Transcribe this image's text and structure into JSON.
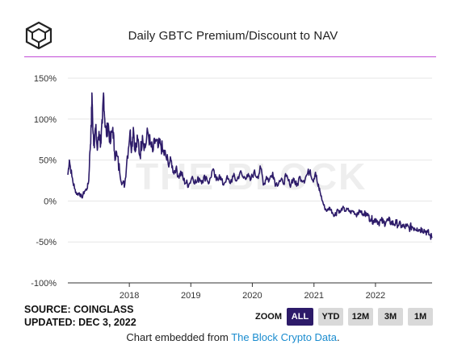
{
  "header": {
    "title": "Daily GBTC Premium/Discount to NAV",
    "logo_icon": "cube-logo-icon",
    "accent_color": "#c14bd6"
  },
  "watermark": "THE BLOCK",
  "chart_data": {
    "type": "line",
    "title": "Daily GBTC Premium/Discount to NAV",
    "xlabel": "",
    "ylabel": "",
    "x_ticks": [
      "2018",
      "2019",
      "2020",
      "2021",
      "2022"
    ],
    "y_ticks": [
      "150%",
      "100%",
      "50%",
      "0%",
      "-50%",
      "-100%"
    ],
    "ylim": [
      -100,
      150
    ],
    "xlim": [
      "2017-01-01",
      "2022-12-03"
    ],
    "grid": "horizontal",
    "series": [
      {
        "color": "#2d1b69",
        "points": [
          [
            "2017-01-01",
            32
          ],
          [
            "2017-01-10",
            50
          ],
          [
            "2017-01-25",
            30
          ],
          [
            "2017-02-10",
            15
          ],
          [
            "2017-02-25",
            8
          ],
          [
            "2017-03-10",
            10
          ],
          [
            "2017-03-25",
            4
          ],
          [
            "2017-04-10",
            12
          ],
          [
            "2017-04-25",
            15
          ],
          [
            "2017-05-05",
            25
          ],
          [
            "2017-05-12",
            60
          ],
          [
            "2017-05-20",
            90
          ],
          [
            "2017-05-24",
            132
          ],
          [
            "2017-05-28",
            100
          ],
          [
            "2017-06-05",
            70
          ],
          [
            "2017-06-15",
            90
          ],
          [
            "2017-06-25",
            62
          ],
          [
            "2017-07-05",
            85
          ],
          [
            "2017-07-15",
            70
          ],
          [
            "2017-07-25",
            95
          ],
          [
            "2017-08-01",
            132
          ],
          [
            "2017-08-08",
            100
          ],
          [
            "2017-08-18",
            80
          ],
          [
            "2017-08-28",
            95
          ],
          [
            "2017-09-10",
            70
          ],
          [
            "2017-09-25",
            90
          ],
          [
            "2017-10-05",
            60
          ],
          [
            "2017-10-20",
            55
          ],
          [
            "2017-11-05",
            35
          ],
          [
            "2017-11-20",
            22
          ],
          [
            "2017-12-05",
            20
          ],
          [
            "2017-12-20",
            55
          ],
          [
            "2018-01-05",
            85
          ],
          [
            "2018-01-15",
            65
          ],
          [
            "2018-01-25",
            90
          ],
          [
            "2018-02-05",
            60
          ],
          [
            "2018-02-20",
            75
          ],
          [
            "2018-03-05",
            55
          ],
          [
            "2018-03-20",
            80
          ],
          [
            "2018-04-05",
            65
          ],
          [
            "2018-04-20",
            85
          ],
          [
            "2018-05-05",
            70
          ],
          [
            "2018-05-20",
            60
          ],
          [
            "2018-06-05",
            75
          ],
          [
            "2018-06-20",
            65
          ],
          [
            "2018-07-05",
            70
          ],
          [
            "2018-07-20",
            60
          ],
          [
            "2018-08-05",
            55
          ],
          [
            "2018-08-20",
            45
          ],
          [
            "2018-09-05",
            50
          ],
          [
            "2018-09-20",
            35
          ],
          [
            "2018-10-05",
            40
          ],
          [
            "2018-10-20",
            30
          ],
          [
            "2018-11-05",
            35
          ],
          [
            "2018-11-20",
            25
          ],
          [
            "2018-12-05",
            22
          ],
          [
            "2018-12-20",
            20
          ],
          [
            "2019-01-10",
            30
          ],
          [
            "2019-02-01",
            22
          ],
          [
            "2019-02-20",
            28
          ],
          [
            "2019-03-10",
            25
          ],
          [
            "2019-04-01",
            30
          ],
          [
            "2019-04-20",
            22
          ],
          [
            "2019-05-10",
            38
          ],
          [
            "2019-06-01",
            25
          ],
          [
            "2019-06-20",
            32
          ],
          [
            "2019-07-10",
            20
          ],
          [
            "2019-08-01",
            28
          ],
          [
            "2019-08-20",
            22
          ],
          [
            "2019-09-10",
            30
          ],
          [
            "2019-10-01",
            25
          ],
          [
            "2019-10-20",
            35
          ],
          [
            "2019-11-10",
            28
          ],
          [
            "2019-12-01",
            32
          ],
          [
            "2019-12-20",
            25
          ],
          [
            "2020-01-10",
            35
          ],
          [
            "2020-02-01",
            30
          ],
          [
            "2020-02-20",
            40
          ],
          [
            "2020-03-10",
            20
          ],
          [
            "2020-03-25",
            30
          ],
          [
            "2020-04-10",
            25
          ],
          [
            "2020-05-01",
            35
          ],
          [
            "2020-05-20",
            20
          ],
          [
            "2020-06-10",
            25
          ],
          [
            "2020-07-01",
            22
          ],
          [
            "2020-07-20",
            30
          ],
          [
            "2020-08-10",
            20
          ],
          [
            "2020-09-01",
            28
          ],
          [
            "2020-09-20",
            18
          ],
          [
            "2020-10-10",
            30
          ],
          [
            "2020-11-01",
            25
          ],
          [
            "2020-11-20",
            32
          ],
          [
            "2020-12-10",
            38
          ],
          [
            "2020-12-25",
            25
          ],
          [
            "2021-01-10",
            35
          ],
          [
            "2021-01-25",
            18
          ],
          [
            "2021-02-05",
            12
          ],
          [
            "2021-02-20",
            0
          ],
          [
            "2021-03-05",
            -8
          ],
          [
            "2021-03-20",
            -12
          ],
          [
            "2021-04-05",
            -8
          ],
          [
            "2021-04-20",
            -14
          ],
          [
            "2021-05-05",
            -18
          ],
          [
            "2021-05-20",
            -10
          ],
          [
            "2021-06-05",
            -14
          ],
          [
            "2021-06-20",
            -8
          ],
          [
            "2021-07-05",
            -12
          ],
          [
            "2021-07-20",
            -10
          ],
          [
            "2021-08-05",
            -14
          ],
          [
            "2021-08-20",
            -12
          ],
          [
            "2021-09-05",
            -16
          ],
          [
            "2021-09-20",
            -14
          ],
          [
            "2021-10-05",
            -12
          ],
          [
            "2021-10-20",
            -18
          ],
          [
            "2021-11-05",
            -14
          ],
          [
            "2021-11-20",
            -18
          ],
          [
            "2021-12-05",
            -22
          ],
          [
            "2021-12-20",
            -24
          ],
          [
            "2022-01-05",
            -22
          ],
          [
            "2022-01-20",
            -26
          ],
          [
            "2022-02-05",
            -24
          ],
          [
            "2022-02-20",
            -27
          ],
          [
            "2022-03-05",
            -25
          ],
          [
            "2022-03-20",
            -24
          ],
          [
            "2022-04-05",
            -26
          ],
          [
            "2022-04-20",
            -28
          ],
          [
            "2022-05-05",
            -27
          ],
          [
            "2022-05-20",
            -29
          ],
          [
            "2022-06-05",
            -30
          ],
          [
            "2022-06-20",
            -32
          ],
          [
            "2022-07-05",
            -31
          ],
          [
            "2022-07-20",
            -33
          ],
          [
            "2022-08-05",
            -31
          ],
          [
            "2022-08-20",
            -33
          ],
          [
            "2022-09-05",
            -33
          ],
          [
            "2022-09-20",
            -35
          ],
          [
            "2022-10-05",
            -34
          ],
          [
            "2022-10-20",
            -36
          ],
          [
            "2022-11-05",
            -38
          ],
          [
            "2022-11-20",
            -42
          ],
          [
            "2022-12-03",
            -45
          ]
        ]
      }
    ]
  },
  "footer": {
    "source": "SOURCE: COINGLASS",
    "updated": "UPDATED: DEC 3, 2022",
    "zoom_label": "ZOOM",
    "zoom_buttons": [
      {
        "label": "ALL",
        "active": true
      },
      {
        "label": "YTD",
        "active": false
      },
      {
        "label": "12M",
        "active": false
      },
      {
        "label": "3M",
        "active": false
      },
      {
        "label": "1M",
        "active": false
      }
    ],
    "embed_prefix": "Chart embedded from ",
    "embed_link": "The Block Crypto Data",
    "embed_suffix": "."
  }
}
